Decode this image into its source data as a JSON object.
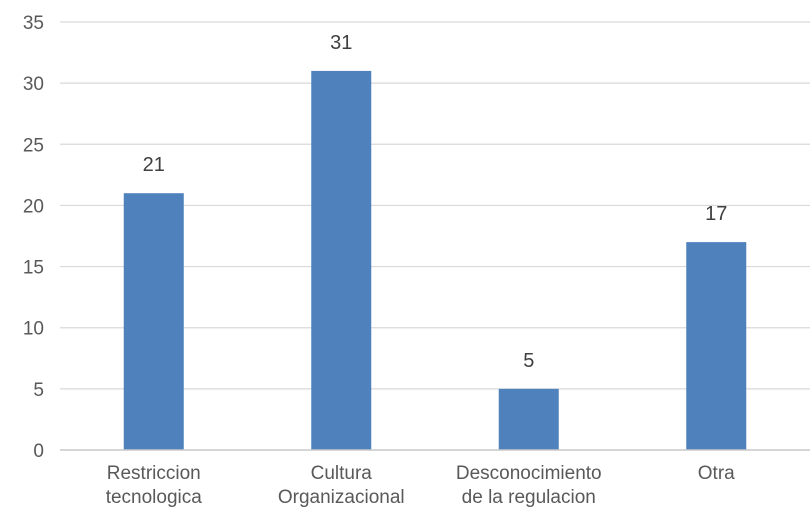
{
  "chart_data": {
    "type": "bar",
    "categories": [
      [
        "Restriccion",
        "tecnologica"
      ],
      [
        "Cultura",
        "Organizacional"
      ],
      [
        "Desconocimiento",
        "de la regulacion"
      ],
      [
        "Otra"
      ]
    ],
    "values": [
      21,
      31,
      5,
      17
    ],
    "data_labels": [
      "21",
      "31",
      "5",
      "17"
    ],
    "ylim": [
      0,
      35
    ],
    "yticks": [
      0,
      5,
      10,
      15,
      20,
      25,
      30,
      35
    ],
    "grid": true,
    "legend": "none",
    "bar_color": "#4f81bd"
  }
}
